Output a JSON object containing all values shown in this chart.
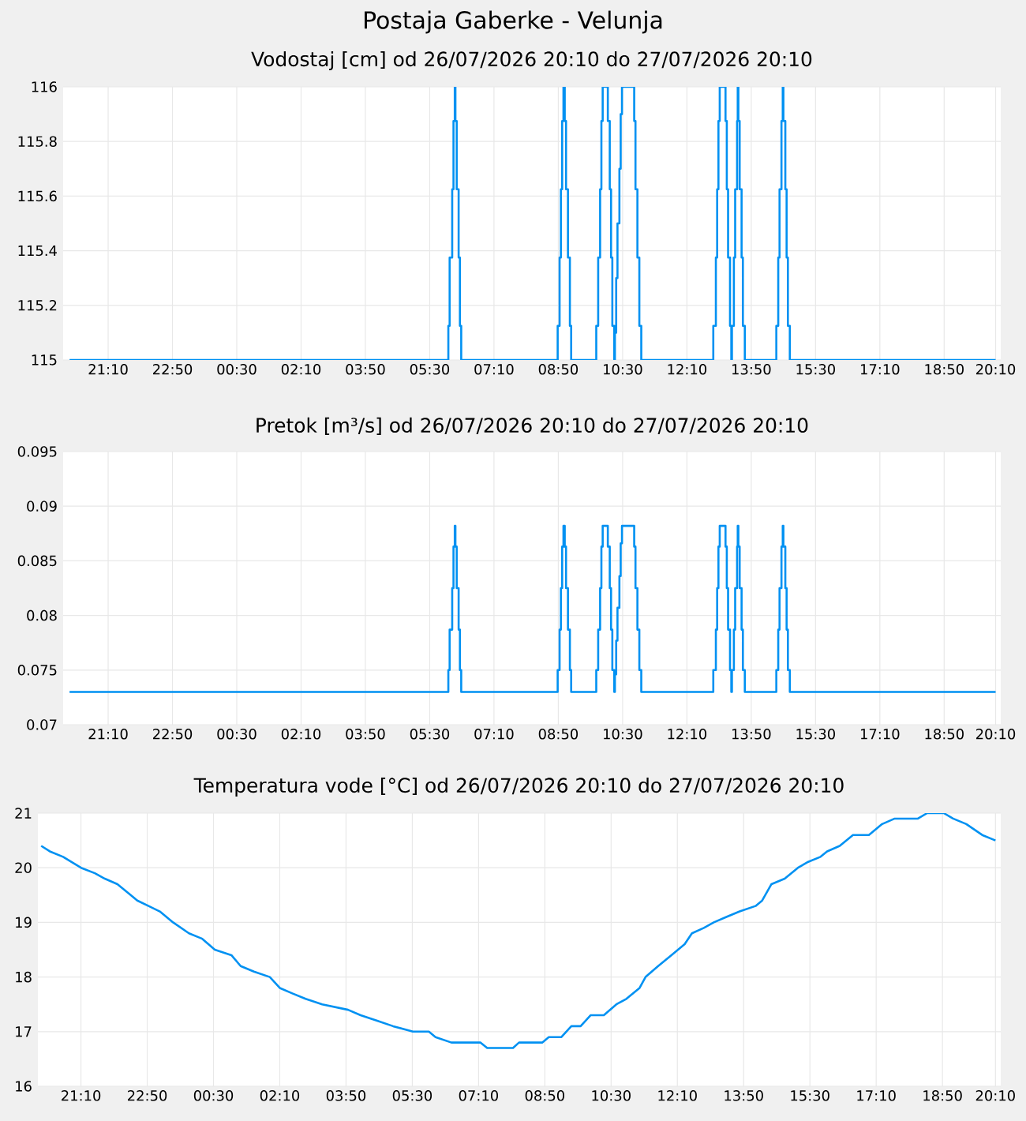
{
  "chart_data": [
    {
      "type": "step",
      "title": "Postaja Gaberke - Velunja",
      "subtitle": "Vodostaj [cm] od 26/07/2026 20:10 do 27/07/2026 20:10",
      "color": "#0091f2",
      "grid": true,
      "xlim": [
        "2026-07-26T20:00",
        "2026-07-27T20:18"
      ],
      "ylim": [
        115,
        116
      ],
      "yticks": [
        115,
        115.2,
        115.4,
        115.6,
        115.8,
        116
      ],
      "xticks": [
        {
          "value": "2026-07-26T21:10",
          "label": "21:10"
        },
        {
          "value": "2026-07-26T22:50",
          "label": "22:50"
        },
        {
          "value": "2026-07-27T00:30",
          "label": "00:30"
        },
        {
          "value": "2026-07-27T02:10",
          "label": "02:10"
        },
        {
          "value": "2026-07-27T03:50",
          "label": "03:50"
        },
        {
          "value": "2026-07-27T05:30",
          "label": "05:30"
        },
        {
          "value": "2026-07-27T07:10",
          "label": "07:10"
        },
        {
          "value": "2026-07-27T08:50",
          "label": "08:50"
        },
        {
          "value": "2026-07-27T10:30",
          "label": "10:30"
        },
        {
          "value": "2026-07-27T12:10",
          "label": "12:10"
        },
        {
          "value": "2026-07-27T13:50",
          "label": "13:50"
        },
        {
          "value": "2026-07-27T15:30",
          "label": "15:30"
        },
        {
          "value": "2026-07-27T17:10",
          "label": "17:10"
        },
        {
          "value": "2026-07-27T18:50",
          "label": "18:50"
        },
        {
          "value": "2026-07-27T20:10",
          "label": "20:10"
        }
      ],
      "x": [
        "2026-07-26T20:10",
        "2026-07-27T05:59",
        "2026-07-27T06:01",
        "2026-07-27T06:05",
        "2026-07-27T06:07",
        "2026-07-27T06:09",
        "2026-07-27T06:10",
        "2026-07-27T06:12",
        "2026-07-27T06:15",
        "2026-07-27T06:17",
        "2026-07-27T06:19",
        "2026-07-27T08:49",
        "2026-07-27T08:52",
        "2026-07-27T08:54",
        "2026-07-27T08:56",
        "2026-07-27T08:58",
        "2026-07-27T09:00",
        "2026-07-27T09:02",
        "2026-07-27T09:05",
        "2026-07-27T09:08",
        "2026-07-27T09:10",
        "2026-07-27T09:49",
        "2026-07-27T09:52",
        "2026-07-27T09:55",
        "2026-07-27T09:57",
        "2026-07-27T09:59",
        "2026-07-27T10:07",
        "2026-07-27T10:10",
        "2026-07-27T10:12",
        "2026-07-27T10:14",
        "2026-07-27T10:17",
        "2026-07-27T10:18",
        "2026-07-27T10:20",
        "2026-07-27T10:22",
        "2026-07-27T10:25",
        "2026-07-27T10:27",
        "2026-07-27T10:29",
        "2026-07-27T10:48",
        "2026-07-27T10:50",
        "2026-07-27T10:53",
        "2026-07-27T10:56",
        "2026-07-27T10:59",
        "2026-07-27T12:51",
        "2026-07-27T12:55",
        "2026-07-27T12:57",
        "2026-07-27T12:59",
        "2026-07-27T13:01",
        "2026-07-27T13:10",
        "2026-07-27T13:12",
        "2026-07-27T13:14",
        "2026-07-27T13:17",
        "2026-07-27T13:19",
        "2026-07-27T13:20",
        "2026-07-27T13:23",
        "2026-07-27T13:25",
        "2026-07-27T13:28",
        "2026-07-27T13:29",
        "2026-07-27T13:30",
        "2026-07-27T13:32",
        "2026-07-27T13:35",
        "2026-07-27T13:37",
        "2026-07-27T13:40",
        "2026-07-27T14:29",
        "2026-07-27T14:32",
        "2026-07-27T14:34",
        "2026-07-27T14:37",
        "2026-07-27T14:39",
        "2026-07-27T14:40",
        "2026-07-27T14:43",
        "2026-07-27T14:45",
        "2026-07-27T14:47",
        "2026-07-27T14:50",
        "2026-07-27T20:10"
      ],
      "values": [
        115,
        115.125,
        115.375,
        115.625,
        115.875,
        116,
        115.875,
        115.625,
        115.375,
        115.125,
        115,
        115.125,
        115.375,
        115.625,
        115.875,
        116,
        115.875,
        115.625,
        115.375,
        115.125,
        115,
        115.125,
        115.375,
        115.625,
        115.875,
        116,
        115.875,
        115.625,
        115.375,
        115.125,
        115,
        115.1,
        115.3,
        115.5,
        115.7,
        115.9,
        116,
        115.875,
        115.625,
        115.375,
        115.125,
        115,
        115.125,
        115.375,
        115.625,
        115.875,
        116,
        115.875,
        115.625,
        115.375,
        115.125,
        115,
        115.125,
        115.375,
        115.625,
        115.875,
        116,
        115.875,
        115.625,
        115.375,
        115.125,
        115,
        115.125,
        115.375,
        115.625,
        115.875,
        116,
        115.875,
        115.625,
        115.375,
        115.125,
        115,
        115
      ]
    },
    {
      "type": "step",
      "title": "Pretok [m³/s] od 26/07/2026 20:10 do 27/07/2026 20:10",
      "color": "#0091f2",
      "grid": true,
      "xlim": [
        "2026-07-26T20:00",
        "2026-07-27T20:18"
      ],
      "ylim": [
        0.07,
        0.095
      ],
      "yticks": [
        0.07,
        0.075,
        0.08,
        0.085,
        0.09,
        0.095
      ],
      "xticks": [
        {
          "value": "2026-07-26T21:10",
          "label": "21:10"
        },
        {
          "value": "2026-07-26T22:50",
          "label": "22:50"
        },
        {
          "value": "2026-07-27T00:30",
          "label": "00:30"
        },
        {
          "value": "2026-07-27T02:10",
          "label": "02:10"
        },
        {
          "value": "2026-07-27T03:50",
          "label": "03:50"
        },
        {
          "value": "2026-07-27T05:30",
          "label": "05:30"
        },
        {
          "value": "2026-07-27T07:10",
          "label": "07:10"
        },
        {
          "value": "2026-07-27T08:50",
          "label": "08:50"
        },
        {
          "value": "2026-07-27T10:30",
          "label": "10:30"
        },
        {
          "value": "2026-07-27T12:10",
          "label": "12:10"
        },
        {
          "value": "2026-07-27T13:50",
          "label": "13:50"
        },
        {
          "value": "2026-07-27T15:30",
          "label": "15:30"
        },
        {
          "value": "2026-07-27T17:10",
          "label": "17:10"
        },
        {
          "value": "2026-07-27T18:50",
          "label": "18:50"
        },
        {
          "value": "2026-07-27T20:10",
          "label": "20:10"
        }
      ],
      "x": [
        "2026-07-26T20:10",
        "2026-07-27T05:59",
        "2026-07-27T06:01",
        "2026-07-27T06:05",
        "2026-07-27T06:07",
        "2026-07-27T06:09",
        "2026-07-27T06:10",
        "2026-07-27T06:12",
        "2026-07-27T06:15",
        "2026-07-27T06:17",
        "2026-07-27T06:19",
        "2026-07-27T08:49",
        "2026-07-27T08:52",
        "2026-07-27T08:54",
        "2026-07-27T08:56",
        "2026-07-27T08:58",
        "2026-07-27T09:00",
        "2026-07-27T09:02",
        "2026-07-27T09:05",
        "2026-07-27T09:08",
        "2026-07-27T09:10",
        "2026-07-27T09:49",
        "2026-07-27T09:52",
        "2026-07-27T09:55",
        "2026-07-27T09:57",
        "2026-07-27T09:59",
        "2026-07-27T10:07",
        "2026-07-27T10:10",
        "2026-07-27T10:12",
        "2026-07-27T10:14",
        "2026-07-27T10:17",
        "2026-07-27T10:18",
        "2026-07-27T10:20",
        "2026-07-27T10:22",
        "2026-07-27T10:25",
        "2026-07-27T10:27",
        "2026-07-27T10:29",
        "2026-07-27T10:48",
        "2026-07-27T10:50",
        "2026-07-27T10:53",
        "2026-07-27T10:56",
        "2026-07-27T10:59",
        "2026-07-27T12:51",
        "2026-07-27T12:55",
        "2026-07-27T12:57",
        "2026-07-27T12:59",
        "2026-07-27T13:01",
        "2026-07-27T13:10",
        "2026-07-27T13:12",
        "2026-07-27T13:14",
        "2026-07-27T13:17",
        "2026-07-27T13:19",
        "2026-07-27T13:20",
        "2026-07-27T13:23",
        "2026-07-27T13:25",
        "2026-07-27T13:28",
        "2026-07-27T13:29",
        "2026-07-27T13:30",
        "2026-07-27T13:32",
        "2026-07-27T13:35",
        "2026-07-27T13:37",
        "2026-07-27T13:40",
        "2026-07-27T14:29",
        "2026-07-27T14:32",
        "2026-07-27T14:34",
        "2026-07-27T14:37",
        "2026-07-27T14:39",
        "2026-07-27T14:40",
        "2026-07-27T14:43",
        "2026-07-27T14:45",
        "2026-07-27T14:47",
        "2026-07-27T14:50",
        "2026-07-27T20:10"
      ],
      "values": [
        0.073,
        0.075,
        0.0787,
        0.0825,
        0.0863,
        0.0882,
        0.0863,
        0.0825,
        0.0787,
        0.075,
        0.073,
        0.075,
        0.0787,
        0.0825,
        0.0863,
        0.0882,
        0.0863,
        0.0825,
        0.0787,
        0.075,
        0.073,
        0.075,
        0.0787,
        0.0825,
        0.0863,
        0.0882,
        0.0863,
        0.0825,
        0.0787,
        0.075,
        0.073,
        0.0746,
        0.0777,
        0.0807,
        0.0836,
        0.0866,
        0.0882,
        0.0863,
        0.0825,
        0.0787,
        0.075,
        0.073,
        0.075,
        0.0787,
        0.0825,
        0.0863,
        0.0882,
        0.0863,
        0.0825,
        0.0787,
        0.075,
        0.073,
        0.075,
        0.0787,
        0.0825,
        0.0863,
        0.0882,
        0.0863,
        0.0825,
        0.0787,
        0.075,
        0.073,
        0.075,
        0.0787,
        0.0825,
        0.0863,
        0.0882,
        0.0863,
        0.0825,
        0.0787,
        0.075,
        0.073,
        0.073
      ]
    },
    {
      "type": "line",
      "title": "Temperatura vode [°C] od 26/07/2026 20:10 do 27/07/2026 20:10",
      "color": "#0091f2",
      "grid": true,
      "xlim": [
        "2026-07-26T20:05",
        "2026-07-27T20:18"
      ],
      "ylim": [
        16,
        21
      ],
      "yticks": [
        16,
        17,
        18,
        19,
        20,
        21
      ],
      "xticks": [
        {
          "value": "2026-07-26T21:10",
          "label": "21:10"
        },
        {
          "value": "2026-07-26T22:50",
          "label": "22:50"
        },
        {
          "value": "2026-07-27T00:30",
          "label": "00:30"
        },
        {
          "value": "2026-07-27T02:10",
          "label": "02:10"
        },
        {
          "value": "2026-07-27T03:50",
          "label": "03:50"
        },
        {
          "value": "2026-07-27T05:30",
          "label": "05:30"
        },
        {
          "value": "2026-07-27T07:10",
          "label": "07:10"
        },
        {
          "value": "2026-07-27T08:50",
          "label": "08:50"
        },
        {
          "value": "2026-07-27T10:30",
          "label": "10:30"
        },
        {
          "value": "2026-07-27T12:10",
          "label": "12:10"
        },
        {
          "value": "2026-07-27T13:50",
          "label": "13:50"
        },
        {
          "value": "2026-07-27T15:30",
          "label": "15:30"
        },
        {
          "value": "2026-07-27T17:10",
          "label": "17:10"
        },
        {
          "value": "2026-07-27T18:50",
          "label": "18:50"
        },
        {
          "value": "2026-07-27T20:10",
          "label": "20:10"
        }
      ],
      "x": [
        "2026-07-26T20:10",
        "2026-07-26T20:23",
        "2026-07-26T20:43",
        "2026-07-26T21:10",
        "2026-07-26T21:31",
        "2026-07-26T21:46",
        "2026-07-26T22:05",
        "2026-07-26T22:25",
        "2026-07-26T22:35",
        "2026-07-26T22:52",
        "2026-07-26T23:09",
        "2026-07-26T23:29",
        "2026-07-26T23:53",
        "2026-07-27T00:13",
        "2026-07-27T00:32",
        "2026-07-27T00:57",
        "2026-07-27T01:11",
        "2026-07-27T01:31",
        "2026-07-27T01:55",
        "2026-07-27T02:10",
        "2026-07-27T02:29",
        "2026-07-27T02:49",
        "2026-07-27T03:14",
        "2026-07-27T03:53",
        "2026-07-27T04:12",
        "2026-07-27T04:37",
        "2026-07-27T05:01",
        "2026-07-27T05:31",
        "2026-07-27T05:55",
        "2026-07-27T06:05",
        "2026-07-27T06:29",
        "2026-07-27T07:13",
        "2026-07-27T07:23",
        "2026-07-27T08:02",
        "2026-07-27T08:11",
        "2026-07-27T08:46",
        "2026-07-27T08:56",
        "2026-07-27T09:15",
        "2026-07-27T09:30",
        "2026-07-27T09:44",
        "2026-07-27T09:59",
        "2026-07-27T10:19",
        "2026-07-27T10:38",
        "2026-07-27T10:53",
        "2026-07-27T11:13",
        "2026-07-27T11:22",
        "2026-07-27T11:41",
        "2026-07-27T12:01",
        "2026-07-27T12:21",
        "2026-07-27T12:32",
        "2026-07-27T12:50",
        "2026-07-27T13:05",
        "2026-07-27T13:24",
        "2026-07-27T13:44",
        "2026-07-27T14:08",
        "2026-07-27T14:18",
        "2026-07-27T14:32",
        "2026-07-27T14:52",
        "2026-07-27T15:12",
        "2026-07-27T15:26",
        "2026-07-27T15:46",
        "2026-07-27T15:56",
        "2026-07-27T16:15",
        "2026-07-27T16:35",
        "2026-07-27T16:59",
        "2026-07-27T17:19",
        "2026-07-27T17:38",
        "2026-07-27T18:13",
        "2026-07-27T18:27",
        "2026-07-27T18:52",
        "2026-07-27T19:06",
        "2026-07-27T19:26",
        "2026-07-27T19:50",
        "2026-07-27T20:10"
      ],
      "values": [
        20.4,
        20.3,
        20.2,
        20.0,
        19.9,
        19.8,
        19.7,
        19.5,
        19.4,
        19.3,
        19.2,
        19.0,
        18.8,
        18.7,
        18.5,
        18.4,
        18.2,
        18.1,
        18.0,
        17.8,
        17.7,
        17.6,
        17.5,
        17.4,
        17.3,
        17.2,
        17.1,
        17.0,
        17.0,
        16.9,
        16.8,
        16.8,
        16.7,
        16.7,
        16.8,
        16.8,
        16.9,
        16.9,
        17.1,
        17.1,
        17.3,
        17.3,
        17.5,
        17.6,
        17.8,
        18.0,
        18.2,
        18.4,
        18.6,
        18.8,
        18.9,
        19.0,
        19.1,
        19.2,
        19.3,
        19.4,
        19.7,
        19.8,
        20.0,
        20.1,
        20.2,
        20.3,
        20.4,
        20.6,
        20.6,
        20.8,
        20.9,
        20.9,
        21.0,
        21.0,
        20.9,
        20.8,
        20.6,
        20.5
      ]
    }
  ]
}
